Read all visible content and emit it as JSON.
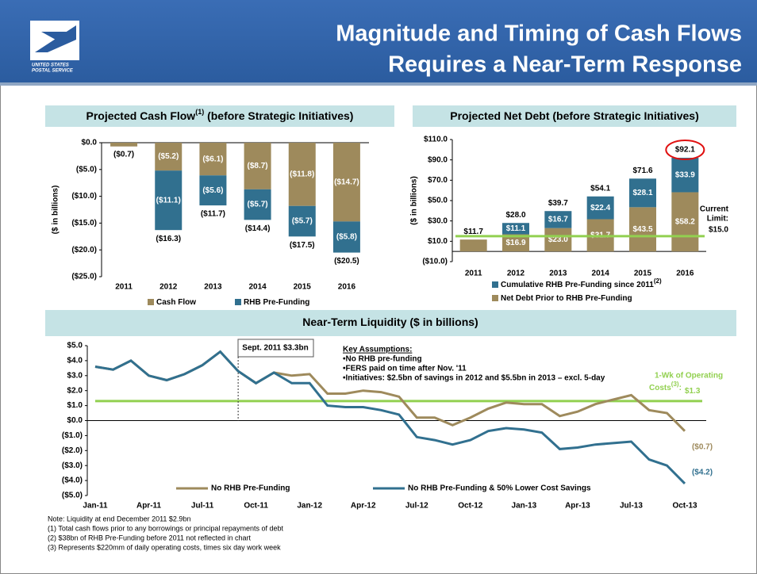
{
  "header": {
    "title_lines": [
      "Magnitude and Timing of Cash Flows",
      "Requires a Near-Term Response"
    ],
    "logo_lines": [
      "UNITED STATES",
      "POSTAL SERVICE"
    ]
  },
  "chart_data": [
    {
      "type": "bar",
      "stacked": true,
      "title": [
        "Projected Cash Flow",
        "(1)",
        " (before Strategic Initiatives)"
      ],
      "ylabel": "($ in billions)",
      "categories": [
        "2011",
        "2012",
        "2013",
        "2014",
        "2015",
        "2016"
      ],
      "series": [
        {
          "name": "Cash Flow",
          "color": "#9e8a5c",
          "values": [
            -0.7,
            -5.2,
            -6.1,
            -8.7,
            -11.8,
            -14.7
          ],
          "value_labels": [
            "($0.7)",
            "($5.2)",
            "($6.1)",
            "($8.7)",
            "($11.8)",
            "($14.7)"
          ]
        },
        {
          "name": "RHB Pre-Funding",
          "color": "#31708f",
          "values": [
            null,
            -11.1,
            -5.6,
            -5.7,
            -5.7,
            -5.8
          ],
          "value_labels": [
            null,
            "($11.1)",
            "($5.6)",
            "($5.7)",
            "($5.7)",
            "($5.8)"
          ]
        }
      ],
      "totals": [
        null,
        -16.3,
        -11.7,
        -14.4,
        -17.5,
        -20.5
      ],
      "total_labels": [
        null,
        "($16.3)",
        "($11.7)",
        "($14.4)",
        "($17.5)",
        "($20.5)"
      ],
      "ylim": [
        -25,
        0
      ],
      "yticks": [
        {
          "value": 0,
          "label": "$0.0"
        },
        {
          "value": -5,
          "label": "($5.0)"
        },
        {
          "value": -10,
          "label": "($10.0)"
        },
        {
          "value": -15,
          "label": "($15.0)"
        },
        {
          "value": -20,
          "label": "($20.0)"
        },
        {
          "value": -25,
          "label": "($25.0)"
        }
      ],
      "grid": false,
      "legend": "bottom"
    },
    {
      "type": "bar",
      "stacked": true,
      "title": [
        "Projected Net Debt (before Strategic Initiatives)"
      ],
      "ylabel": "($ in billions)",
      "categories": [
        "2011",
        "2012",
        "2013",
        "2014",
        "2015",
        "2016"
      ],
      "series": [
        {
          "name": "Net Debt Prior to RHB Pre-Funding",
          "color": "#9e8a5c",
          "values": [
            11.7,
            16.9,
            23.0,
            31.7,
            43.5,
            58.2
          ],
          "value_labels": [
            null,
            "$16.9",
            "$23.0",
            "$31.7",
            "$43.5",
            "$58.2"
          ]
        },
        {
          "name": "Cumulative RHB Pre-Funding since 2011",
          "name_note": "(2)",
          "color": "#31708f",
          "values": [
            null,
            11.1,
            16.7,
            22.4,
            28.1,
            33.9
          ],
          "value_labels": [
            null,
            "$11.1",
            "$16.7",
            "$22.4",
            "$28.1",
            "$33.9"
          ]
        }
      ],
      "totals": [
        11.7,
        28.0,
        39.7,
        54.1,
        71.6,
        92.1
      ],
      "total_labels": [
        "$11.7",
        "$28.0",
        "$39.7",
        "$54.1",
        "$71.6",
        "$92.1"
      ],
      "reference_line": {
        "value": 15,
        "label_lines": [
          "Current",
          "Limit:"
        ],
        "value_label": "$15.0",
        "color": "#92d050"
      },
      "ylim": [
        -10,
        110
      ],
      "yticks": [
        {
          "value": -10,
          "label": "($10.0)"
        },
        {
          "value": 10,
          "label": "$10.0"
        },
        {
          "value": 30,
          "label": "$30.0"
        },
        {
          "value": 50,
          "label": "$50.0"
        },
        {
          "value": 70,
          "label": "$70.0"
        },
        {
          "value": 90,
          "label": "$90.0"
        },
        {
          "value": 110,
          "label": "$110.0"
        }
      ],
      "grid": false,
      "legend": "bottom"
    },
    {
      "type": "line",
      "title": [
        "Near-Term Liquidity ($ in billions)"
      ],
      "categories": [
        "Jan-11",
        null,
        null,
        "Apr-11",
        null,
        null,
        "Jul-11",
        null,
        null,
        "Oct-11",
        null,
        null,
        "Jan-12",
        null,
        null,
        "Apr-12",
        null,
        null,
        "Jul-12",
        null,
        null,
        "Oct-12",
        null,
        null,
        "Jan-13",
        null,
        null,
        "Apr-13",
        null,
        null,
        "Jul-13",
        null,
        null,
        "Oct-13"
      ],
      "series": [
        {
          "name": "No RHB Pre-Funding",
          "color": "#9e8a5c",
          "values": [
            3.6,
            3.4,
            4.0,
            3.0,
            2.7,
            3.1,
            3.7,
            4.6,
            3.3,
            2.5,
            3.2,
            3.0,
            3.1,
            1.8,
            1.8,
            2.0,
            1.9,
            1.6,
            0.2,
            0.2,
            -0.3,
            0.2,
            0.8,
            1.2,
            1.1,
            1.1,
            0.3,
            0.6,
            1.1,
            1.4,
            1.7,
            0.7,
            0.5,
            -0.7
          ],
          "value_labels": [
            null,
            null,
            null,
            null,
            null,
            null,
            null,
            null,
            null,
            null,
            null,
            null,
            null,
            null,
            null,
            null,
            null,
            null,
            null,
            null,
            null,
            null,
            null,
            null,
            null,
            null,
            null,
            null,
            null,
            null,
            null,
            null,
            null,
            "($0.7)"
          ]
        },
        {
          "name": "No RHB Pre-Funding & 50% Lower Cost Savings",
          "color": "#31708f",
          "values": [
            3.6,
            3.4,
            4.0,
            3.0,
            2.7,
            3.1,
            3.7,
            4.6,
            3.3,
            2.5,
            3.2,
            2.5,
            2.5,
            1.0,
            0.9,
            0.9,
            0.7,
            0.4,
            -1.1,
            -1.3,
            -1.6,
            -1.3,
            -0.7,
            -0.5,
            -0.6,
            -0.8,
            -1.9,
            -1.8,
            -1.6,
            -1.5,
            -1.4,
            -2.6,
            -3.0,
            -4.2
          ],
          "value_labels": [
            null,
            null,
            null,
            null,
            null,
            null,
            null,
            null,
            null,
            null,
            null,
            null,
            null,
            null,
            null,
            null,
            null,
            null,
            null,
            null,
            null,
            null,
            null,
            null,
            null,
            null,
            null,
            null,
            null,
            null,
            null,
            null,
            null,
            "($4.2)"
          ]
        }
      ],
      "reference_line": {
        "value": 1.3,
        "label_lines": [
          "1-Wk of Operating",
          "Costs"
        ],
        "label_note": "(3)",
        "label_end": ":",
        "value_label": "$1.3",
        "color": "#92d050"
      },
      "annotation": "Sept. 2011 $3.3bn",
      "assumptions": {
        "heading": "Key Assumptions:",
        "items": [
          "•No RHB pre-funding",
          "•FERS paid on time after Nov. '11",
          "•Initiatives: $2.5bn of savings in 2012 and $5.5bn in 2013 – excl. 5-day"
        ]
      },
      "ylim": [
        -5,
        5
      ],
      "yticks": [
        {
          "value": 5,
          "label": "$5.0"
        },
        {
          "value": 4,
          "label": "$4.0"
        },
        {
          "value": 3,
          "label": "$3.0"
        },
        {
          "value": 2,
          "label": "$2.0"
        },
        {
          "value": 1,
          "label": "$1.0"
        },
        {
          "value": 0,
          "label": "$0.0"
        },
        {
          "value": -1,
          "label": "($1.0)"
        },
        {
          "value": -2,
          "label": "($2.0)"
        },
        {
          "value": -3,
          "label": "($3.0)"
        },
        {
          "value": -4,
          "label": "($4.0)"
        },
        {
          "value": -5,
          "label": "($5.0)"
        }
      ],
      "grid": false,
      "legend": "bottom"
    }
  ],
  "footnotes": [
    "Note: Liquidity at end December 2011 $2.9bn",
    "(1) Total cash flows prior to any borrowings or principal repayments of debt",
    "(2) $38bn of RHB Pre-Funding before 2011 not reflected in chart",
    "(3) Represents $220mm of daily operating costs, times six day work week"
  ]
}
